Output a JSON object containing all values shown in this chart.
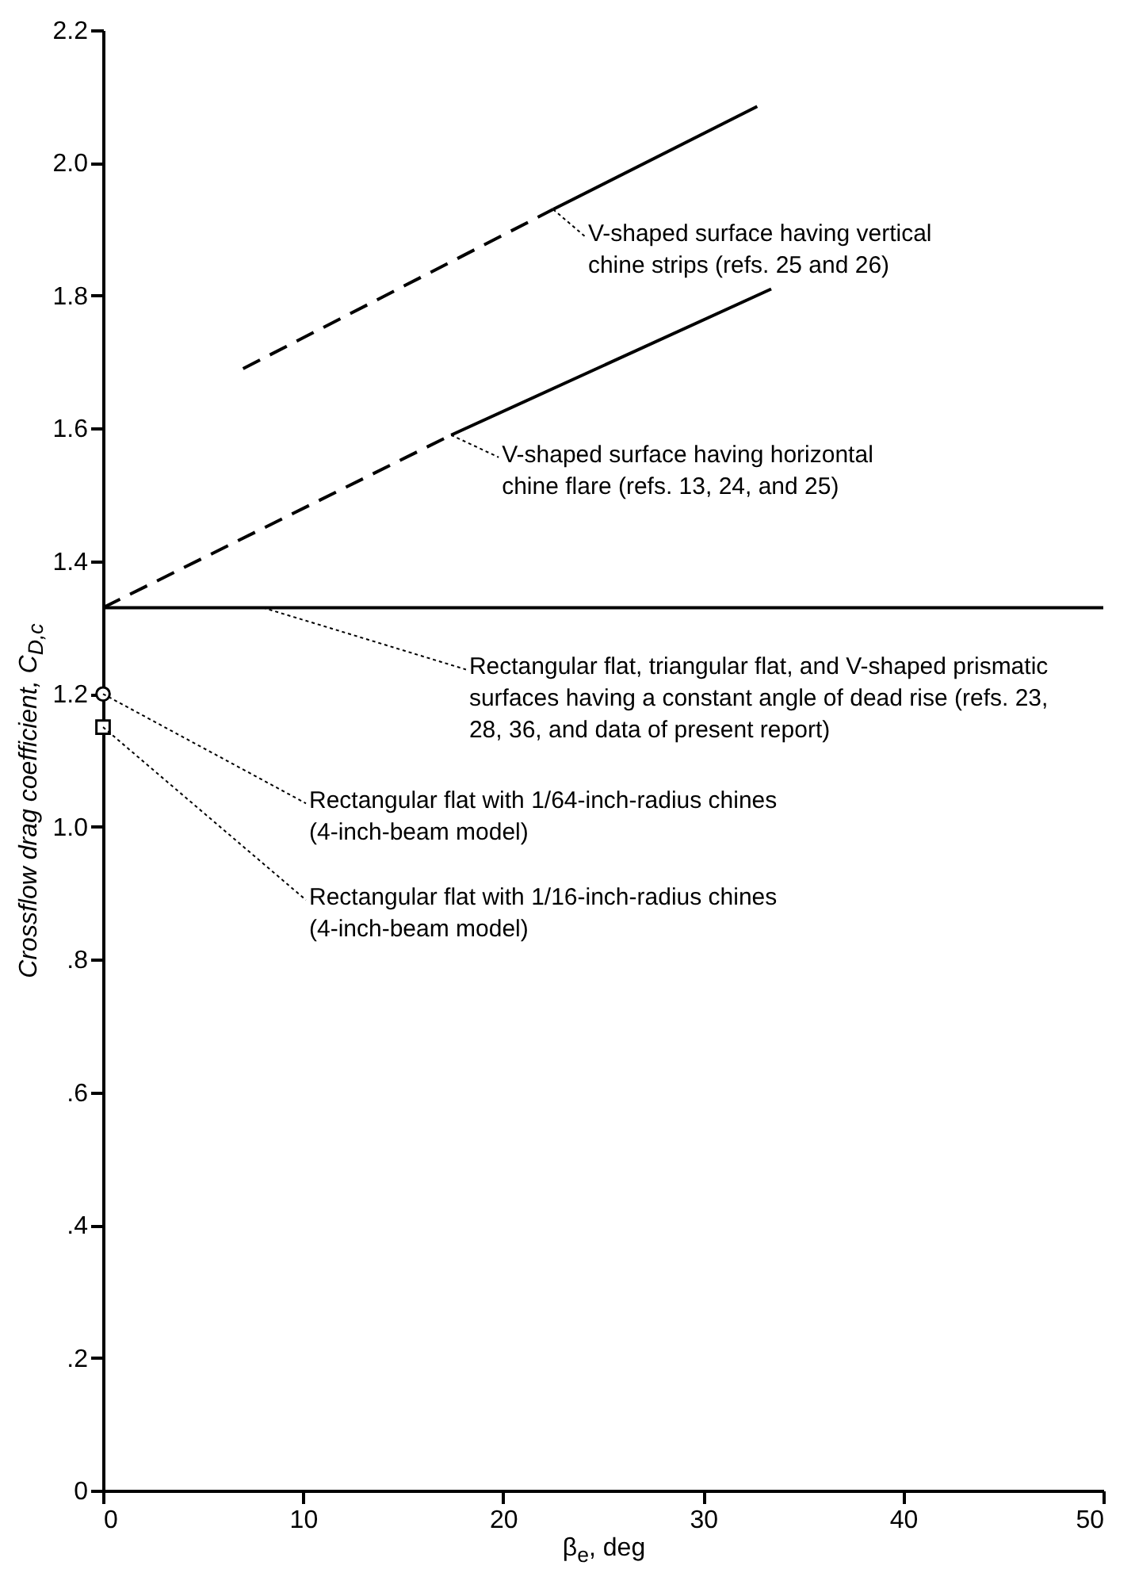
{
  "chart_data": {
    "type": "line",
    "xlabel": "β$_{e}$, deg",
    "ylabel": "Crossflow drag coefficient, C$_{D,c}$",
    "xlim": [
      0,
      50
    ],
    "xticks": [
      0,
      10,
      20,
      30,
      40,
      50
    ],
    "ylim": [
      0,
      2.2
    ],
    "yticks": [
      {
        "value": 0,
        "label": "0"
      },
      {
        "value": 0.2,
        "label": ".2"
      },
      {
        "value": 0.4,
        "label": ".4"
      },
      {
        "value": 0.6,
        "label": ".6"
      },
      {
        "value": 0.8,
        "label": ".8"
      },
      {
        "value": 1.0,
        "label": "1.0"
      },
      1.2,
      1.4,
      1.6,
      1.8,
      {
        "value": 2.0,
        "label": "2.0"
      },
      2.2
    ],
    "grid": false,
    "series": [
      {
        "type": "line",
        "color": "#000000",
        "line_style": "dashed",
        "marker": "none",
        "x": [
          7,
          22.5
        ],
        "values": [
          1.69,
          1.93
        ]
      },
      {
        "type": "line",
        "color": "#000000",
        "line_style": "solid",
        "marker": "none",
        "x": [
          22.5,
          32.7
        ],
        "values": [
          1.93,
          2.085
        ]
      },
      {
        "type": "line",
        "color": "#000000",
        "line_style": "dashed",
        "marker": "none",
        "x": [
          0,
          17.4
        ],
        "values": [
          1.33,
          1.59
        ]
      },
      {
        "type": "line",
        "color": "#000000",
        "line_style": "solid",
        "marker": "none",
        "x": [
          17.4,
          33.4
        ],
        "values": [
          1.59,
          1.81
        ]
      },
      {
        "type": "line",
        "color": "#000000",
        "line_style": "solid",
        "marker": "none",
        "x": [
          0,
          50
        ],
        "values": [
          1.33,
          1.33
        ]
      },
      {
        "type": "scatter",
        "color": "#000000",
        "marker": "circle",
        "x": [
          0
        ],
        "values": [
          1.2
        ]
      },
      {
        "type": "scatter",
        "color": "#000000",
        "marker": "square",
        "x": [
          0
        ],
        "values": [
          1.15
        ]
      }
    ],
    "annotations": [
      {
        "text": "V-shaped surface having vertical\n  chine strips (refs. 25 and 26)",
        "x": 22.5,
        "y": 1.93
      },
      {
        "text": "V-shaped surface having horizontal\n  chine flare (refs. 13, 24, and 25)",
        "x": 17.4,
        "y": 1.59
      },
      {
        "text": "Rectangular flat, triangular flat, and V-shaped prismatic\n  surfaces having a constant angle of dead rise (refs. 23,\n  28, 36, and data of present report)",
        "x": 8,
        "y": 1.33
      },
      {
        "text": "Rectangular flat with 1/64-inch-radius chines\n  (4-inch-beam model)",
        "x": 0,
        "y": 1.2
      },
      {
        "text": "Rectangular flat with 1/16-inch-radius chines\n  (4-inch-beam model)",
        "x": 0,
        "y": 1.15
      }
    ]
  }
}
